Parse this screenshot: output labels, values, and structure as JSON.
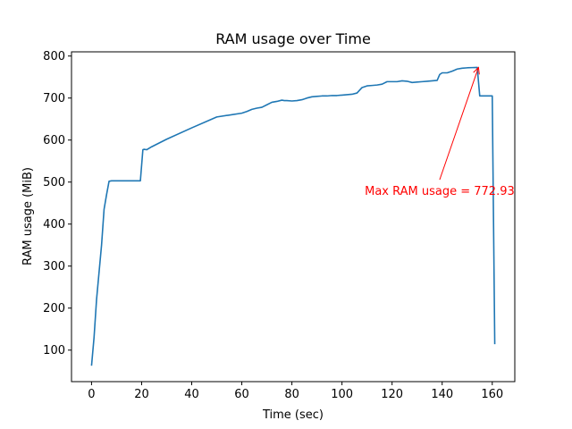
{
  "chart_data": {
    "type": "line",
    "title": "RAM usage over Time",
    "xlabel": "Time (sec)",
    "ylabel": "RAM usage (MiB)",
    "xlim": [
      -8,
      169
    ],
    "ylim": [
      25,
      810
    ],
    "xticks": [
      0,
      20,
      40,
      60,
      80,
      100,
      120,
      140,
      160
    ],
    "yticks": [
      100,
      200,
      300,
      400,
      500,
      600,
      700,
      800
    ],
    "grid": false,
    "legend": "none",
    "colors": {
      "line": "#1f77b4",
      "annotation": "#ff0000",
      "axis": "#000000"
    },
    "series": [
      {
        "x": [
          0,
          1,
          2,
          3,
          4,
          5,
          6,
          7,
          8,
          9,
          10,
          12,
          14,
          16,
          18,
          19.5,
          20.5,
          21,
          22,
          24,
          30,
          40,
          50,
          60,
          62,
          64,
          66,
          68,
          70,
          72,
          74,
          76,
          77,
          78,
          80,
          82,
          84,
          86,
          88,
          90,
          92,
          94,
          96,
          98,
          100,
          102,
          104,
          106,
          108,
          110,
          112,
          114,
          116,
          118,
          120,
          122,
          124,
          126,
          128,
          130,
          132,
          134,
          136,
          138,
          139,
          140,
          142,
          144,
          146,
          148,
          150,
          152,
          154,
          155,
          156,
          158,
          160,
          161
        ],
        "values": [
          63,
          130,
          220,
          285,
          350,
          435,
          470,
          502,
          503,
          503,
          503,
          503,
          503,
          503,
          503,
          503,
          577,
          578,
          577,
          584,
          602,
          629,
          655,
          664,
          668,
          673,
          676,
          678,
          684,
          690,
          692,
          695,
          694,
          694,
          693,
          694,
          696,
          700,
          703,
          704,
          705,
          705,
          706,
          706,
          707,
          708,
          709,
          712,
          725,
          729,
          730,
          731,
          733,
          739,
          739,
          739,
          741,
          740,
          737,
          738,
          739,
          740,
          741,
          742,
          756,
          760,
          760,
          764,
          769,
          771,
          772,
          772.5,
          772.93,
          705,
          705,
          705,
          705,
          114
        ]
      }
    ],
    "annotation": {
      "text": "Max RAM usage = 772.93",
      "xy": [
        154.5,
        772.93
      ],
      "xytext": [
        139,
        480
      ]
    }
  }
}
